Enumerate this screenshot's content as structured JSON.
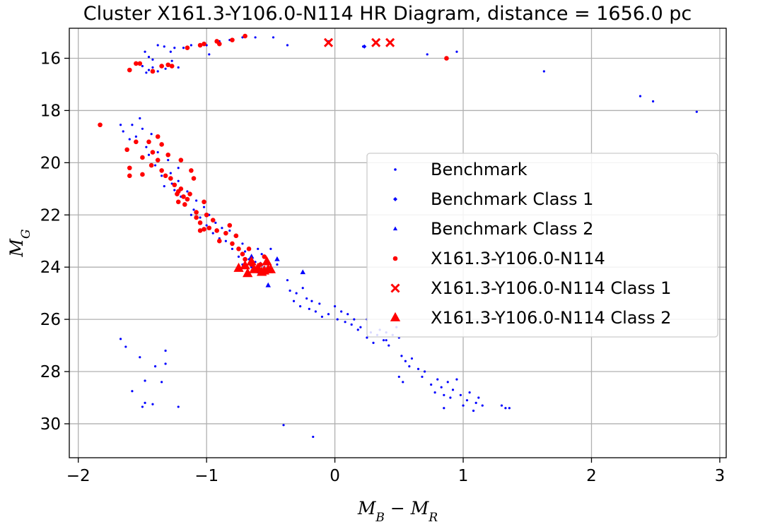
{
  "chart_data": {
    "type": "scatter",
    "title": "Cluster X161.3-Y106.0-N114 HR Diagram, distance = 1656.0 pc",
    "xlabel": "M_B − M_R",
    "ylabel": "M_G",
    "xlim": [
      -2.07,
      3.05
    ],
    "ylim": [
      31.3,
      14.85
    ],
    "y_inverted": true,
    "grid": true,
    "legend_position": "center-right",
    "x_ticks": [
      -2,
      -1,
      0,
      1,
      2,
      3
    ],
    "x_tick_labels": [
      "−2",
      "−1",
      "0",
      "1",
      "2",
      "3"
    ],
    "y_ticks": [
      16,
      18,
      20,
      22,
      24,
      26,
      28,
      30
    ],
    "y_tick_labels": [
      "16",
      "18",
      "20",
      "22",
      "24",
      "26",
      "28",
      "30"
    ],
    "series": [
      {
        "name": "Benchmark",
        "color": "#0000ff",
        "marker": "point",
        "points": [
          [
            -1.48,
            15.75
          ],
          [
            -1.45,
            15.95
          ],
          [
            -1.42,
            16.05
          ],
          [
            -1.38,
            15.5
          ],
          [
            -1.33,
            15.55
          ],
          [
            -1.28,
            15.75
          ],
          [
            -1.25,
            15.6
          ],
          [
            -1.18,
            15.6
          ],
          [
            -1.12,
            15.5
          ],
          [
            -1.0,
            15.5
          ],
          [
            -0.98,
            15.85
          ],
          [
            -0.9,
            15.35
          ],
          [
            -0.82,
            15.3
          ],
          [
            -0.72,
            15.2
          ],
          [
            -0.62,
            15.2
          ],
          [
            -0.48,
            15.2
          ],
          [
            -0.37,
            15.5
          ],
          [
            -0.05,
            15.35
          ],
          [
            0.22,
            15.55
          ],
          [
            0.72,
            15.85
          ],
          [
            0.95,
            15.75
          ],
          [
            1.63,
            16.5
          ],
          [
            2.38,
            17.45
          ],
          [
            2.48,
            17.65
          ],
          [
            2.82,
            18.05
          ],
          [
            -1.5,
            16.3
          ],
          [
            -1.45,
            16.45
          ],
          [
            -1.42,
            16.35
          ],
          [
            -1.38,
            16.5
          ],
          [
            -1.32,
            16.4
          ],
          [
            -1.27,
            16.1
          ],
          [
            -1.22,
            16.35
          ],
          [
            -1.47,
            16.55
          ],
          [
            -1.67,
            18.55
          ],
          [
            -1.65,
            18.8
          ],
          [
            -1.6,
            19.1
          ],
          [
            -1.58,
            18.55
          ],
          [
            -1.55,
            19.0
          ],
          [
            -1.52,
            18.3
          ],
          [
            -1.5,
            18.7
          ],
          [
            -1.47,
            19.4
          ],
          [
            -1.45,
            19.7
          ],
          [
            -1.43,
            18.9
          ],
          [
            -1.4,
            20.1
          ],
          [
            -1.38,
            19.6
          ],
          [
            -1.35,
            20.5
          ],
          [
            -1.33,
            20.9
          ],
          [
            -1.3,
            19.9
          ],
          [
            -1.28,
            20.4
          ],
          [
            -1.25,
            21.05
          ],
          [
            -1.22,
            20.7
          ],
          [
            -1.2,
            21.3
          ],
          [
            -1.17,
            21.6
          ],
          [
            -1.15,
            21.1
          ],
          [
            -1.12,
            22.0
          ],
          [
            -1.1,
            21.8
          ],
          [
            -1.08,
            21.45
          ],
          [
            -1.05,
            22.1
          ],
          [
            -1.02,
            21.7
          ],
          [
            -1.0,
            22.4
          ],
          [
            -0.98,
            22.0
          ],
          [
            -0.95,
            22.7
          ],
          [
            -0.93,
            22.3
          ],
          [
            -0.9,
            22.9
          ],
          [
            -0.88,
            22.5
          ],
          [
            -0.85,
            23.0
          ],
          [
            -0.82,
            22.6
          ],
          [
            -0.8,
            23.3
          ],
          [
            -0.78,
            22.8
          ],
          [
            -0.75,
            23.6
          ],
          [
            -0.72,
            23.9
          ],
          [
            -0.7,
            23.4
          ],
          [
            -0.67,
            23.7
          ],
          [
            -0.65,
            24.0
          ],
          [
            -0.62,
            23.8
          ],
          [
            -0.6,
            24.2
          ],
          [
            -0.57,
            23.5
          ],
          [
            -0.55,
            24.0
          ],
          [
            -0.5,
            23.3
          ],
          [
            -0.45,
            23.9
          ],
          [
            -0.37,
            24.5
          ],
          [
            -0.35,
            24.9
          ],
          [
            -0.32,
            25.3
          ],
          [
            -0.3,
            25.0
          ],
          [
            -0.27,
            25.5
          ],
          [
            -0.25,
            24.8
          ],
          [
            -0.22,
            25.2
          ],
          [
            -0.2,
            25.6
          ],
          [
            -0.18,
            25.3
          ],
          [
            -0.15,
            25.7
          ],
          [
            -0.12,
            25.4
          ],
          [
            -0.1,
            25.9
          ],
          [
            -0.05,
            25.8
          ],
          [
            0.0,
            25.5
          ],
          [
            0.02,
            26.0
          ],
          [
            0.05,
            25.7
          ],
          [
            0.08,
            26.1
          ],
          [
            0.1,
            25.8
          ],
          [
            0.13,
            26.2
          ],
          [
            0.15,
            26.0
          ],
          [
            0.18,
            26.4
          ],
          [
            0.2,
            26.3
          ],
          [
            0.25,
            26.7
          ],
          [
            0.28,
            26.5
          ],
          [
            0.3,
            26.9
          ],
          [
            0.33,
            26.6
          ],
          [
            0.35,
            26.4
          ],
          [
            0.38,
            26.8
          ],
          [
            0.4,
            26.5
          ],
          [
            0.42,
            27.0
          ],
          [
            0.45,
            26.6
          ],
          [
            0.48,
            26.3
          ],
          [
            0.5,
            26.7
          ],
          [
            0.52,
            27.4
          ],
          [
            0.55,
            27.6
          ],
          [
            0.58,
            27.8
          ],
          [
            0.6,
            27.5
          ],
          [
            0.65,
            27.9
          ],
          [
            0.68,
            28.2
          ],
          [
            0.7,
            28.0
          ],
          [
            0.75,
            28.5
          ],
          [
            0.78,
            28.8
          ],
          [
            0.8,
            28.3
          ],
          [
            0.83,
            28.6
          ],
          [
            0.85,
            28.9
          ],
          [
            0.88,
            28.4
          ],
          [
            0.9,
            29.0
          ],
          [
            0.92,
            28.7
          ],
          [
            0.95,
            28.3
          ],
          [
            0.98,
            28.9
          ],
          [
            1.0,
            29.3
          ],
          [
            1.03,
            29.1
          ],
          [
            1.05,
            28.8
          ],
          [
            1.08,
            29.5
          ],
          [
            1.1,
            29.2
          ],
          [
            1.12,
            29.0
          ],
          [
            1.15,
            29.3
          ],
          [
            1.3,
            29.3
          ],
          [
            1.33,
            29.4
          ],
          [
            1.36,
            29.4
          ],
          [
            0.5,
            28.2
          ],
          [
            0.53,
            28.4
          ],
          [
            0.85,
            29.4
          ],
          [
            0.4,
            26.8
          ],
          [
            0.25,
            26.0
          ],
          [
            -0.6,
            23.3
          ],
          [
            -0.72,
            23.1
          ],
          [
            -1.27,
            20.8
          ],
          [
            -1.22,
            20.2
          ],
          [
            -1.67,
            26.75
          ],
          [
            -1.63,
            27.05
          ],
          [
            -1.58,
            28.75
          ],
          [
            -1.52,
            27.45
          ],
          [
            -1.5,
            29.35
          ],
          [
            -1.48,
            29.2
          ],
          [
            -1.48,
            28.35
          ],
          [
            -1.42,
            29.25
          ],
          [
            -1.4,
            27.8
          ],
          [
            -1.35,
            28.4
          ],
          [
            -1.32,
            27.2
          ],
          [
            -1.32,
            27.7
          ],
          [
            -1.22,
            29.35
          ],
          [
            -0.4,
            30.05
          ],
          [
            -0.17,
            30.5
          ]
        ]
      },
      {
        "name": "Benchmark Class 1",
        "color": "#0000ff",
        "marker": "diamond",
        "points": [
          [
            0.23,
            15.55
          ]
        ]
      },
      {
        "name": "Benchmark Class 2",
        "color": "#0000ff",
        "marker": "triangle",
        "points": [
          [
            -0.45,
            23.7
          ],
          [
            -0.25,
            24.2
          ],
          [
            -0.52,
            24.7
          ],
          [
            -0.65,
            23.6
          ],
          [
            -0.58,
            23.9
          ]
        ]
      },
      {
        "name": "X161.3-Y106.0-N114",
        "color": "#ff0000",
        "marker": "circle",
        "points": [
          [
            -1.6,
            16.45
          ],
          [
            -1.55,
            16.2
          ],
          [
            -1.52,
            16.2
          ],
          [
            -1.42,
            16.5
          ],
          [
            -1.35,
            16.3
          ],
          [
            -1.3,
            16.25
          ],
          [
            -1.27,
            16.3
          ],
          [
            -1.15,
            15.6
          ],
          [
            -1.05,
            15.5
          ],
          [
            -1.02,
            15.45
          ],
          [
            -0.92,
            15.35
          ],
          [
            -0.9,
            15.45
          ],
          [
            -0.8,
            15.3
          ],
          [
            -0.7,
            15.15
          ],
          [
            0.87,
            16.0
          ],
          [
            -1.83,
            18.55
          ],
          [
            -1.62,
            19.5
          ],
          [
            -1.6,
            20.2
          ],
          [
            -1.6,
            20.5
          ],
          [
            -1.55,
            19.2
          ],
          [
            -1.5,
            19.8
          ],
          [
            -1.5,
            20.45
          ],
          [
            -1.45,
            19.2
          ],
          [
            -1.43,
            20.1
          ],
          [
            -1.42,
            19.6
          ],
          [
            -1.38,
            19.0
          ],
          [
            -1.38,
            19.9
          ],
          [
            -1.35,
            20.3
          ],
          [
            -1.32,
            20.5
          ],
          [
            -1.3,
            19.7
          ],
          [
            -1.28,
            20.6
          ],
          [
            -1.25,
            20.85
          ],
          [
            -1.23,
            21.2
          ],
          [
            -1.22,
            21.5
          ],
          [
            -1.2,
            21.0
          ],
          [
            -1.18,
            21.3
          ],
          [
            -1.15,
            21.4
          ],
          [
            -1.12,
            20.3
          ],
          [
            -1.08,
            21.9
          ],
          [
            -1.05,
            22.3
          ],
          [
            -1.05,
            22.6
          ],
          [
            -1.02,
            21.5
          ],
          [
            -1.0,
            22.0
          ],
          [
            -0.98,
            22.5
          ],
          [
            -0.95,
            22.2
          ],
          [
            -0.92,
            22.6
          ],
          [
            -0.9,
            23.0
          ],
          [
            -0.85,
            22.7
          ],
          [
            -0.82,
            22.4
          ],
          [
            -0.8,
            23.1
          ],
          [
            -0.77,
            22.8
          ],
          [
            -0.75,
            23.3
          ],
          [
            -0.72,
            23.5
          ],
          [
            -0.7,
            23.7
          ],
          [
            -0.67,
            23.3
          ],
          [
            -0.65,
            23.9
          ],
          [
            -0.62,
            24.05
          ],
          [
            -0.58,
            23.9
          ],
          [
            -0.55,
            23.6
          ],
          [
            -1.35,
            19.3
          ],
          [
            -1.2,
            19.9
          ],
          [
            -1.22,
            21.1
          ],
          [
            -1.17,
            21.6
          ],
          [
            -1.13,
            21.2
          ],
          [
            -1.1,
            20.6
          ],
          [
            -1.08,
            22.1
          ],
          [
            -1.02,
            22.55
          ]
        ]
      },
      {
        "name": "X161.3-Y106.0-N114 Class 1",
        "color": "#ff0000",
        "marker": "x",
        "points": [
          [
            -0.05,
            15.4
          ],
          [
            0.32,
            15.4
          ],
          [
            0.43,
            15.4
          ]
        ]
      },
      {
        "name": "X161.3-Y106.0-N114 Class 2",
        "color": "#ff0000",
        "marker": "triangle",
        "points": [
          [
            -0.75,
            24.05
          ],
          [
            -0.7,
            23.95
          ],
          [
            -0.68,
            24.25
          ],
          [
            -0.65,
            23.8
          ],
          [
            -0.63,
            24.1
          ],
          [
            -0.6,
            24.05
          ],
          [
            -0.57,
            24.2
          ],
          [
            -0.55,
            24.15
          ],
          [
            -0.53,
            23.8
          ],
          [
            -0.52,
            24.1
          ],
          [
            -0.5,
            24.1
          ]
        ]
      }
    ]
  }
}
